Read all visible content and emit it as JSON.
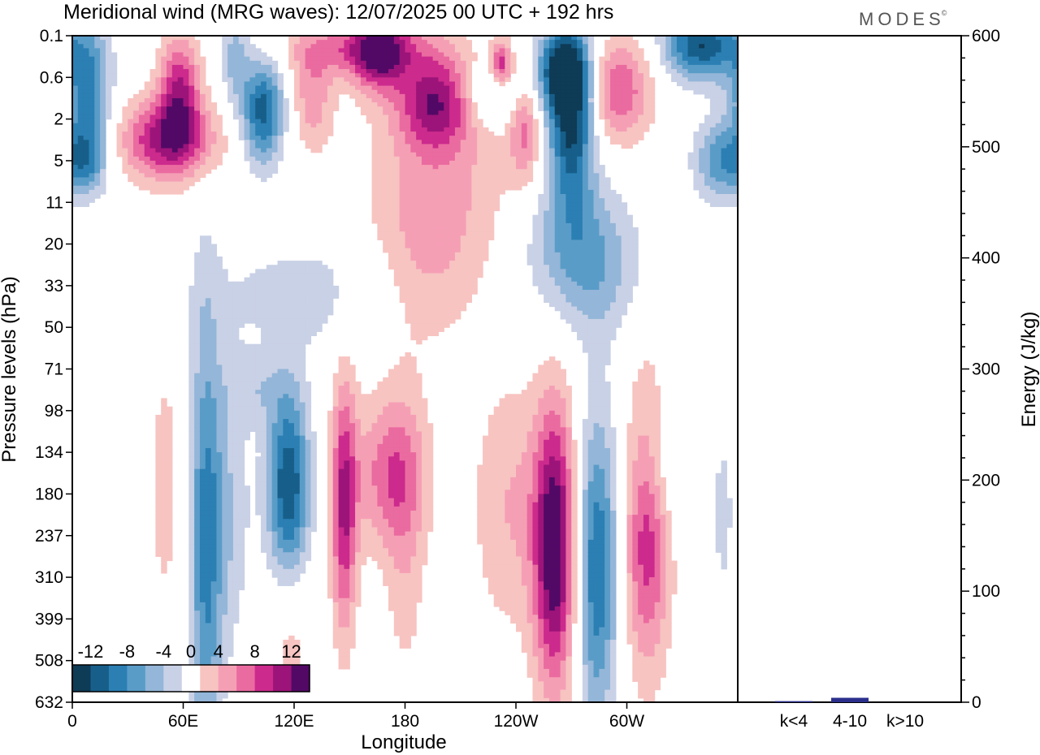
{
  "header": {
    "title": "Meridional wind (MRG waves):  12/07/2025  00 UTC  + 192 hrs",
    "brand": "MODES",
    "brand_mark": "©"
  },
  "colors": {
    "neg": [
      "#0e3b56",
      "#175f8a",
      "#2b7fb3",
      "#5a9cc8",
      "#94b6d8",
      "#c9d1e6"
    ],
    "white": "#ffffff",
    "pos": [
      "#f7c4c1",
      "#f59fb5",
      "#ea6ba0",
      "#cc2a8c",
      "#9c1479",
      "#520966"
    ],
    "energy_bar": "#2b2f8c"
  },
  "chart_data": [
    {
      "type": "heatmap",
      "title": "Meridional wind (MRG waves):  12/07/2025  00 UTC  + 192 hrs",
      "xlabel": "Longitude",
      "ylabel": "Pressure levels (hPa)",
      "x_ticks": [
        "0",
        "60E",
        "120E",
        "180",
        "120W",
        "60W"
      ],
      "x_tick_degrees": [
        0,
        60,
        120,
        180,
        240,
        300
      ],
      "x_range": [
        0,
        360
      ],
      "y_levels": [
        "0.1",
        "0.6",
        "2",
        "5",
        "11",
        "20",
        "33",
        "50",
        "71",
        "98",
        "134",
        "180",
        "237",
        "310",
        "399",
        "508",
        "632"
      ],
      "colorbar": {
        "labels": [
          "-12",
          "-8",
          "-4",
          "0",
          "4",
          "8",
          "12"
        ],
        "label_values": [
          -12,
          -8,
          -4,
          0,
          4,
          8,
          12
        ],
        "bounds": [
          -14,
          -12,
          -10,
          -8,
          -6,
          -4,
          -2,
          2,
          4,
          6,
          8,
          10,
          12,
          14
        ]
      },
      "features": [
        {
          "lon": 8,
          "level": 1.2,
          "value": -9,
          "w": 9,
          "h": 1.1
        },
        {
          "lon": 8,
          "level": 3.0,
          "value": -7,
          "w": 8,
          "h": 0.6
        },
        {
          "lon": 58,
          "level": 1.2,
          "value": 9,
          "w": 8,
          "h": 0.9
        },
        {
          "lon": 52,
          "level": 2.5,
          "value": 11,
          "w": 18,
          "h": 0.7
        },
        {
          "lon": 88,
          "level": 0.5,
          "value": -5,
          "w": 5,
          "h": 0.8
        },
        {
          "lon": 103,
          "level": 1.8,
          "value": -11,
          "w": 8,
          "h": 0.9
        },
        {
          "lon": 130,
          "level": 1.5,
          "value": 5,
          "w": 8,
          "h": 0.9
        },
        {
          "lon": 157,
          "level": 0.3,
          "value": 7,
          "w": 28,
          "h": 0.5
        },
        {
          "lon": 166,
          "level": 0.4,
          "value": 9,
          "w": 10,
          "h": 0.7
        },
        {
          "lon": 196,
          "level": 1.6,
          "value": 10,
          "w": 14,
          "h": 0.8
        },
        {
          "lon": 200,
          "level": 3.5,
          "value": 4,
          "w": 30,
          "h": 1.8
        },
        {
          "lon": 190,
          "level": 5.8,
          "value": 3,
          "w": 20,
          "h": 1.5
        },
        {
          "lon": 232,
          "level": 0.7,
          "value": 9,
          "w": 4,
          "h": 0.4
        },
        {
          "lon": 245,
          "level": 2.3,
          "value": 6,
          "w": 6,
          "h": 0.9
        },
        {
          "lon": 227,
          "level": 1.4,
          "value": -5,
          "w": 10,
          "h": 0.5
        },
        {
          "lon": 270,
          "level": 2.0,
          "value": -13,
          "w": 9,
          "h": 1.4
        },
        {
          "lon": 265,
          "level": 0.8,
          "value": -11,
          "w": 10,
          "h": 0.7
        },
        {
          "lon": 295,
          "level": 1.3,
          "value": 8,
          "w": 13,
          "h": 0.9
        },
        {
          "lon": 340,
          "level": 0.2,
          "value": -12,
          "w": 14,
          "h": 0.6
        },
        {
          "lon": 350,
          "level": 3.0,
          "value": -7,
          "w": 10,
          "h": 0.7
        },
        {
          "lon": 270,
          "level": 5.0,
          "value": -5,
          "w": 20,
          "h": 1.2
        },
        {
          "lon": 285,
          "level": 5.8,
          "value": -3,
          "w": 18,
          "h": 1.2
        },
        {
          "lon": 130,
          "level": 6.2,
          "value": -3,
          "w": 40,
          "h": 1.0
        },
        {
          "lon": 50,
          "level": 10.8,
          "value": 4,
          "w": 5,
          "h": 1.8
        },
        {
          "lon": 72,
          "level": 12.5,
          "value": -7,
          "w": 6,
          "h": 4.5
        },
        {
          "lon": 82,
          "level": 11.5,
          "value": -4,
          "w": 10,
          "h": 2.5
        },
        {
          "lon": 117,
          "level": 10.8,
          "value": -12,
          "w": 8,
          "h": 1.6
        },
        {
          "lon": 147,
          "level": 11.3,
          "value": 10,
          "w": 5,
          "h": 2.2
        },
        {
          "lon": 172,
          "level": 10.5,
          "value": 7,
          "w": 14,
          "h": 1.3
        },
        {
          "lon": 180,
          "level": 12.5,
          "value": 3,
          "w": 8,
          "h": 2.5
        },
        {
          "lon": 237,
          "level": 11.3,
          "value": 4,
          "w": 15,
          "h": 2.2
        },
        {
          "lon": 261,
          "level": 12.3,
          "value": 14,
          "w": 8,
          "h": 2.4
        },
        {
          "lon": 284,
          "level": 12.8,
          "value": -10,
          "w": 8,
          "h": 2.6
        },
        {
          "lon": 311,
          "level": 11.7,
          "value": 10,
          "w": 9,
          "h": 2.4
        },
        {
          "lon": 318,
          "level": 10.3,
          "value": -4,
          "w": 12,
          "h": 1.2
        },
        {
          "lon": 352,
          "level": 11.5,
          "value": -3,
          "w": 4,
          "h": 1.4
        },
        {
          "lon": 118,
          "level": 14.5,
          "value": 3,
          "w": 8,
          "h": 1.4
        },
        {
          "lon": 100,
          "level": 8.5,
          "value": -3,
          "w": 12,
          "h": 0.6
        }
      ]
    },
    {
      "type": "bar",
      "ylabel": "Energy (J/kg)",
      "categories": [
        "k<4",
        "4-10",
        "k>10"
      ],
      "values": [
        1,
        4,
        0
      ],
      "ylim": [
        0,
        600
      ],
      "y_ticks": [
        0,
        100,
        200,
        300,
        400,
        500,
        600
      ]
    }
  ]
}
